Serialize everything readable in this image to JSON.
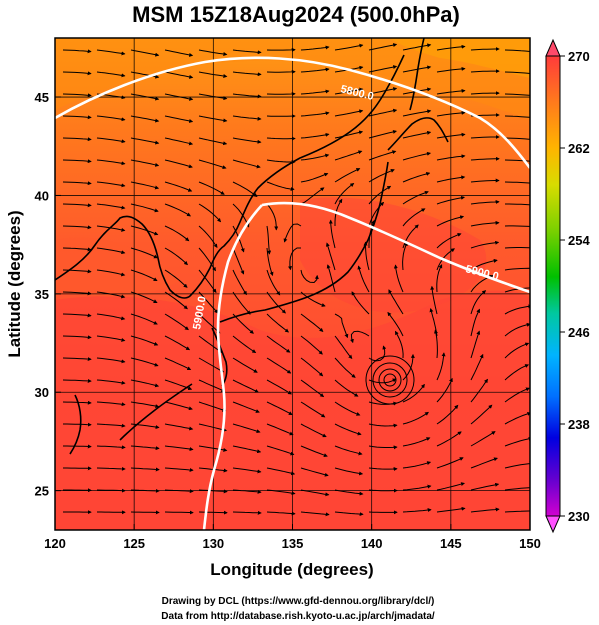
{
  "header": {
    "title": "MSM 15Z18Aug2024 (500.0hPa)"
  },
  "map": {
    "x_label": "Longitude (degrees)",
    "y_label": "Latitude  (degrees)",
    "lon_range": [
      120,
      150
    ],
    "lat_range": [
      23,
      48
    ],
    "x_ticks": [
      "120",
      "125",
      "130",
      "135",
      "140",
      "145",
      "150"
    ],
    "y_ticks": [
      "25",
      "30",
      "35",
      "40",
      "45"
    ],
    "gridlines": true,
    "field_colors": {
      "hot_red": "#ff4536",
      "warm_red": "#ff5a2c",
      "orange": "#ff7a1c",
      "deep_orange": "#ff8a10",
      "yellow_orange": "#ffb400"
    },
    "contours": [
      {
        "label": "5800.0",
        "color": "#ffffff"
      },
      {
        "label": "5900.0",
        "color": "#ffffff"
      },
      {
        "label": "5900.0",
        "color": "#ffffff"
      }
    ],
    "features": [
      "streamlines",
      "coastlines",
      "grid"
    ]
  },
  "colorbar": {
    "min": 230,
    "max": 270,
    "labels": [
      "270",
      "262",
      "254",
      "246",
      "238",
      "230"
    ],
    "colors": [
      "#ff3b3b",
      "#ff7a1c",
      "#ffb400",
      "#d8dc00",
      "#7ad000",
      "#00c000",
      "#00c8a0",
      "#00b4ff",
      "#0070ff",
      "#0000e0",
      "#6400d0",
      "#d000d0"
    ]
  },
  "footer": {
    "line1": "Drawing by DCL (https://www.gfd-dennou.org/library/dcl/)",
    "line2": "Data from http://database.rish.kyoto-u.ac.jp/arch/jmadata/"
  }
}
